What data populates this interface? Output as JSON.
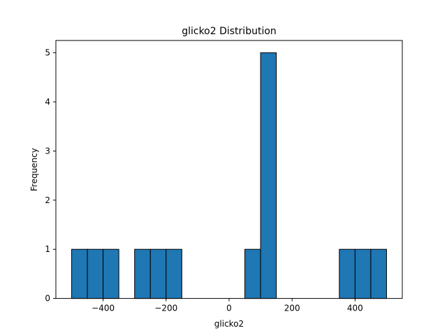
{
  "chart_data": {
    "type": "bar",
    "title": "glicko2 Distribution",
    "xlabel": "glicko2",
    "ylabel": "Frequency",
    "xlim": [
      -550,
      550
    ],
    "ylim": [
      0,
      5.25
    ],
    "xticks": [
      -400,
      -200,
      0,
      200,
      400
    ],
    "yticks": [
      0,
      1,
      2,
      3,
      4,
      5
    ],
    "grid": false,
    "bin_width": 50,
    "bins": [
      {
        "start": -500,
        "end": -450,
        "count": 1
      },
      {
        "start": -450,
        "end": -400,
        "count": 1
      },
      {
        "start": -400,
        "end": -350,
        "count": 1
      },
      {
        "start": -300,
        "end": -250,
        "count": 1
      },
      {
        "start": -250,
        "end": -200,
        "count": 1
      },
      {
        "start": -200,
        "end": -150,
        "count": 1
      },
      {
        "start": 50,
        "end": 100,
        "count": 1
      },
      {
        "start": 100,
        "end": 150,
        "count": 5
      },
      {
        "start": 350,
        "end": 400,
        "count": 1
      },
      {
        "start": 400,
        "end": 450,
        "count": 1
      },
      {
        "start": 450,
        "end": 500,
        "count": 1
      }
    ],
    "bar_color": "#1f77b4",
    "edge_color": "#000000"
  }
}
